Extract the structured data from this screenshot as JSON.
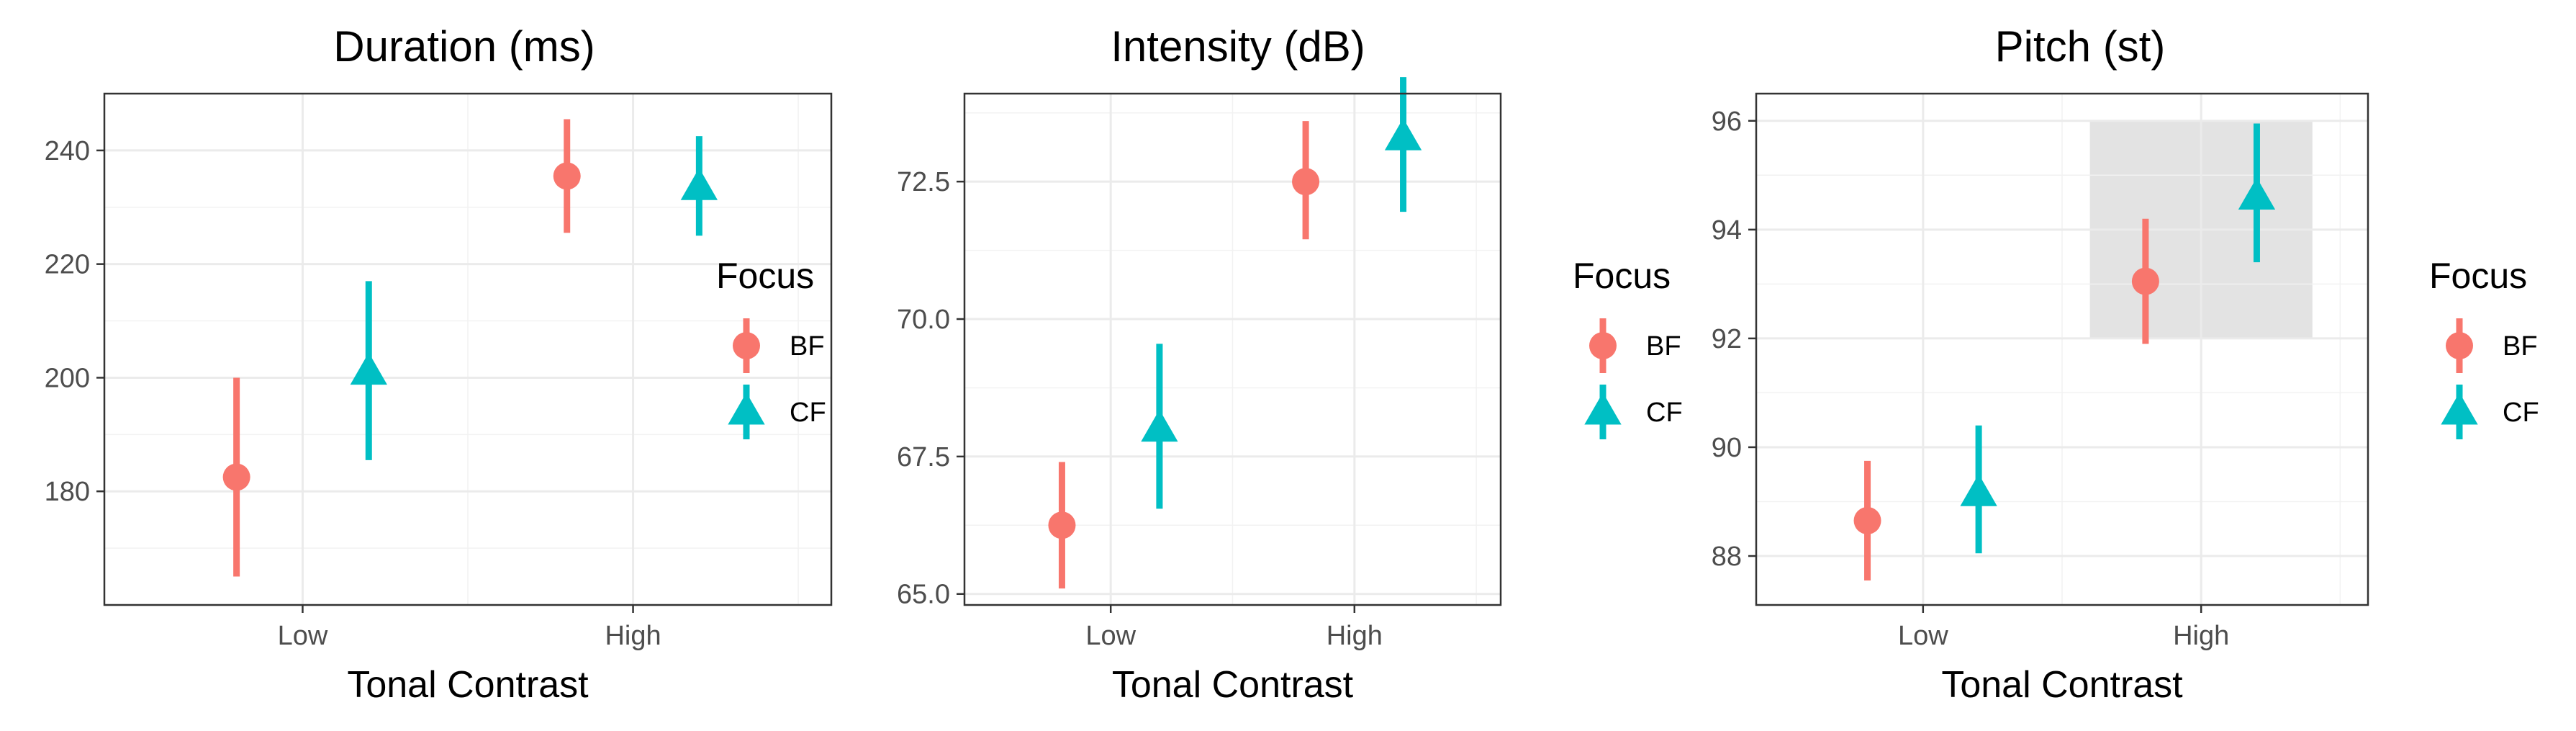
{
  "chart_data": [
    {
      "type": "scatter",
      "title": "Duration (ms)",
      "xlabel": "Tonal Contrast",
      "ylabel": "",
      "categories": [
        "Low",
        "High"
      ],
      "ylim": [
        160,
        250
      ],
      "yticks": [
        180,
        200,
        220,
        240
      ],
      "yticks_minor": [
        170,
        190,
        210,
        230
      ],
      "legend_title": "Focus",
      "series": [
        {
          "name": "BF",
          "color": "#F8766D",
          "shape": "circle",
          "points": [
            {
              "x": "Low",
              "y": 182.5,
              "lo": 165,
              "hi": 200
            },
            {
              "x": "High",
              "y": 235.5,
              "lo": 225.5,
              "hi": 245.5
            }
          ]
        },
        {
          "name": "CF",
          "color": "#00BFC4",
          "shape": "triangle",
          "points": [
            {
              "x": "Low",
              "y": 201,
              "lo": 185.5,
              "hi": 217
            },
            {
              "x": "High",
              "y": 233.5,
              "lo": 225,
              "hi": 242.5
            }
          ]
        }
      ]
    },
    {
      "type": "scatter",
      "title": "Intensity (dB)",
      "xlabel": "Tonal Contrast",
      "ylabel": "",
      "categories": [
        "Low",
        "High"
      ],
      "ylim": [
        64.8,
        74.1
      ],
      "yticks": [
        65.0,
        67.5,
        70.0,
        72.5
      ],
      "yticks_minor": [
        66.25,
        68.75,
        71.25,
        73.75
      ],
      "tick_format": "1dp",
      "legend_title": "Focus",
      "series": [
        {
          "name": "BF",
          "color": "#F8766D",
          "shape": "circle",
          "points": [
            {
              "x": "Low",
              "y": 66.25,
              "lo": 65.1,
              "hi": 67.4
            },
            {
              "x": "High",
              "y": 72.5,
              "lo": 71.45,
              "hi": 73.6
            }
          ]
        },
        {
          "name": "CF",
          "color": "#00BFC4",
          "shape": "triangle",
          "points": [
            {
              "x": "Low",
              "y": 68.0,
              "lo": 66.55,
              "hi": 69.55
            },
            {
              "x": "High",
              "y": 73.3,
              "lo": 71.95,
              "hi": 74.4
            }
          ]
        }
      ]
    },
    {
      "type": "scatter",
      "title": "Pitch (st)",
      "xlabel": "Tonal Contrast",
      "ylabel": "",
      "categories": [
        "Low",
        "High"
      ],
      "ylim": [
        87.1,
        96.5
      ],
      "yticks": [
        88,
        90,
        92,
        94,
        96
      ],
      "yticks_minor": [
        89,
        91,
        93,
        95
      ],
      "legend_title": "Focus",
      "highlight": {
        "x_from": 1.6,
        "x_to": 2.4,
        "y_from": 92,
        "y_to": 96,
        "color": "#e3e3e3"
      },
      "series": [
        {
          "name": "BF",
          "color": "#F8766D",
          "shape": "circle",
          "points": [
            {
              "x": "Low",
              "y": 88.65,
              "lo": 87.55,
              "hi": 89.75
            },
            {
              "x": "High",
              "y": 93.05,
              "lo": 91.9,
              "hi": 94.2
            }
          ]
        },
        {
          "name": "CF",
          "color": "#00BFC4",
          "shape": "triangle",
          "points": [
            {
              "x": "Low",
              "y": 89.15,
              "lo": 88.05,
              "hi": 90.4
            },
            {
              "x": "High",
              "y": 94.6,
              "lo": 93.4,
              "hi": 95.95
            }
          ]
        }
      ]
    }
  ]
}
